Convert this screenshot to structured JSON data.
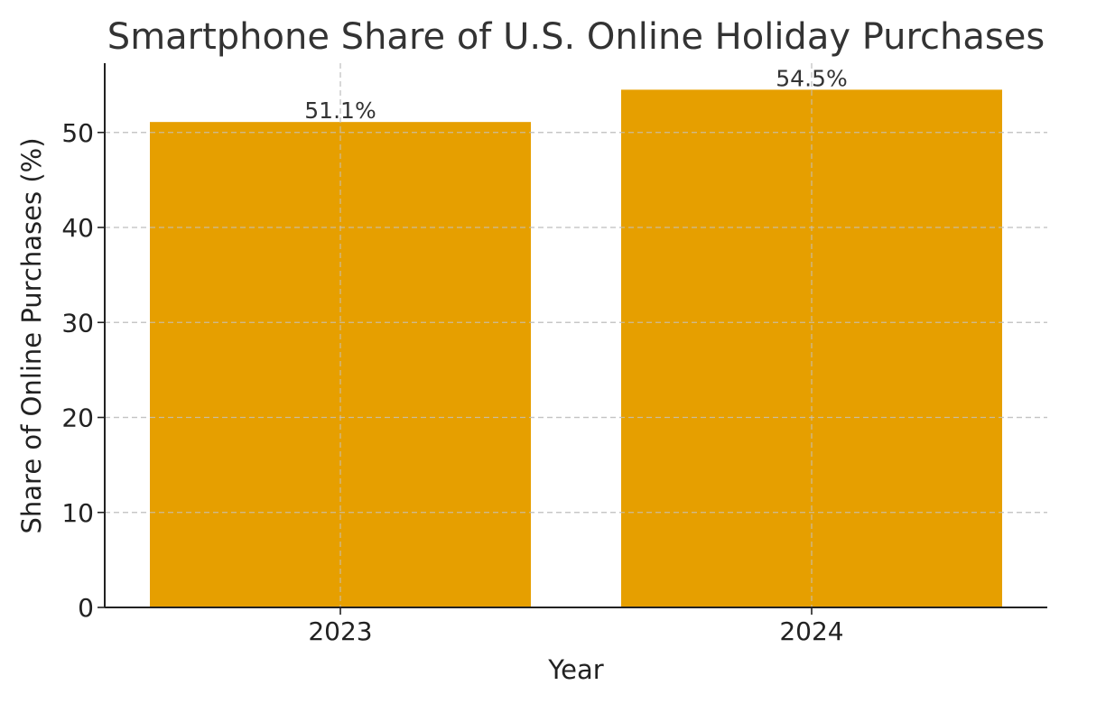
{
  "chart_data": {
    "type": "bar",
    "title": "Smartphone Share of U.S. Online Holiday Purchases",
    "xlabel": "Year",
    "ylabel": "Share of Online Purchases (%)",
    "categories": [
      "2023",
      "2024"
    ],
    "values": [
      51.1,
      54.5
    ],
    "data_labels": [
      "51.1%",
      "54.5%"
    ],
    "ylim": [
      0,
      57.2
    ],
    "yticks": [
      0,
      10,
      20,
      30,
      40,
      50
    ],
    "grid": true,
    "bar_color": "#E69F00"
  }
}
